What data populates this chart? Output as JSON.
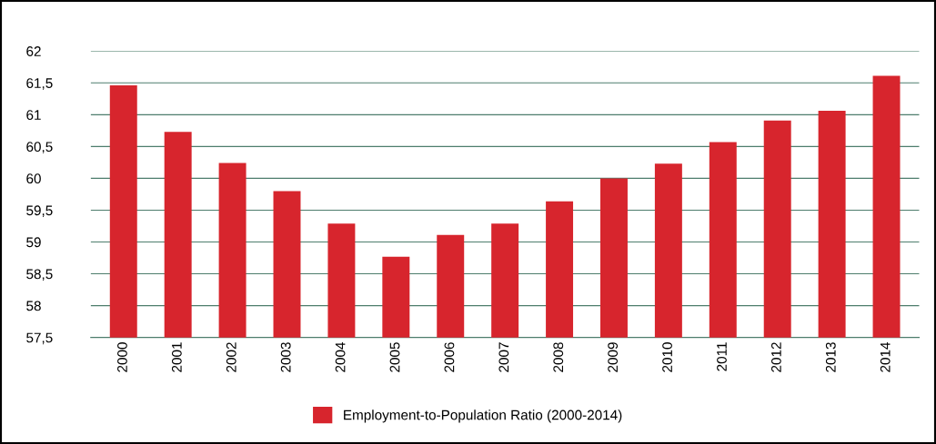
{
  "chart_data": {
    "type": "bar",
    "categories": [
      "2000",
      "2001",
      "2002",
      "2003",
      "2004",
      "2005",
      "2006",
      "2007",
      "2008",
      "2009",
      "2010",
      "2011",
      "2012",
      "2013",
      "2014"
    ],
    "series": [
      {
        "name": "Employment-to-Population Ratio (2000-2014)",
        "color": "#d7252d",
        "values": [
          61.46,
          60.73,
          60.24,
          59.8,
          59.29,
          58.77,
          59.11,
          59.29,
          59.64,
          60.0,
          60.23,
          60.57,
          60.91,
          61.06,
          61.61
        ]
      }
    ],
    "ylim": [
      57.5,
      62
    ],
    "yticks": [
      {
        "value": 57.5,
        "label": "57,5"
      },
      58,
      {
        "value": 58.5,
        "label": "58,5"
      },
      59,
      {
        "value": 59.5,
        "label": "59,5"
      },
      60,
      {
        "value": 60.5,
        "label": "60,5"
      },
      61,
      {
        "value": 61.5,
        "label": "61,5"
      },
      62
    ],
    "grid": "y",
    "legend": "bottom"
  }
}
